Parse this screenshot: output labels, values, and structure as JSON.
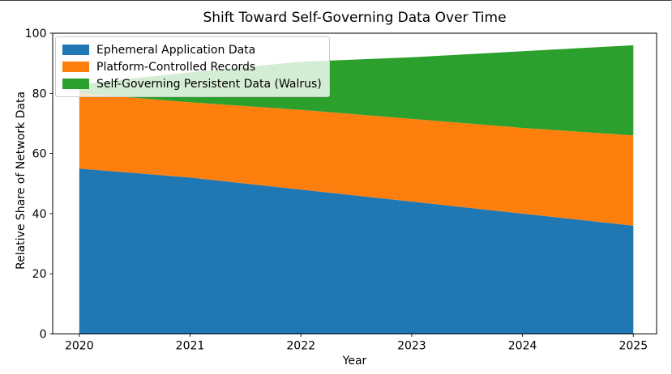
{
  "figure": {
    "title": "Shift Toward Self-Governing Data Over Time",
    "xlabel": "Year",
    "ylabel": "Relative Share of Network Data"
  },
  "chart_data": {
    "type": "area",
    "stacked": true,
    "title": "Shift Toward Self-Governing Data Over Time",
    "xlabel": "Year",
    "ylabel": "Relative Share of Network Data",
    "x": [
      2020,
      2021,
      2022,
      2023,
      2024,
      2025
    ],
    "series": [
      {
        "name": "Ephemeral Application Data",
        "color": "#1f77b4",
        "values": [
          55,
          52,
          48,
          44,
          40,
          36
        ]
      },
      {
        "name": "Platform-Controlled Records",
        "color": "#ff7f0e",
        "values": [
          25,
          25,
          26.5,
          27.5,
          28.5,
          30
        ]
      },
      {
        "name": "Self-Governing Persistent Data (Walrus)",
        "color": "#2ca02c",
        "values": [
          3,
          10,
          16,
          20.5,
          25.5,
          30
        ]
      }
    ],
    "xticks": [
      2020,
      2021,
      2022,
      2023,
      2024,
      2025
    ],
    "yticks": [
      0,
      20,
      40,
      60,
      80,
      100
    ],
    "xlim": [
      2019.76,
      2025.21
    ],
    "ylim": [
      0,
      100
    ],
    "legend_position": "upper left",
    "grid": false,
    "background": "#ffffff",
    "axis_color": "#000000"
  }
}
